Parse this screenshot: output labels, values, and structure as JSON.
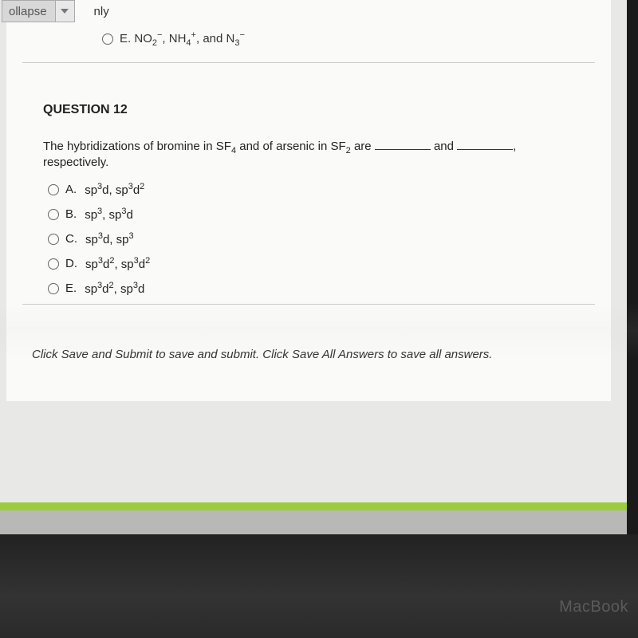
{
  "toolbar": {
    "dropdown_label": "ollapse",
    "trailing_text": "nly"
  },
  "previous_question": {
    "option_e": "E. NO₂⁻, NH₄⁺, and N₃⁻"
  },
  "question": {
    "number_label": "QUESTION 12",
    "stem_part1": "The hybridizations of bromine in SF",
    "stem_sub1": "4",
    "stem_part2": " and of arsenic in SF",
    "stem_sub2": "2",
    "stem_part3": " are ",
    "stem_and": " and ",
    "stem_end": ", respectively.",
    "options": [
      {
        "letter": "A.",
        "text": "sp³d, sp³d²"
      },
      {
        "letter": "B.",
        "text": "sp³, sp³d"
      },
      {
        "letter": "C.",
        "text": "sp³d, sp³"
      },
      {
        "letter": "D.",
        "text": "sp³d², sp³d²"
      },
      {
        "letter": "E.",
        "text": "sp³d², sp³d"
      }
    ]
  },
  "footer_instruction": "Click Save and Submit to save and submit. Click Save All Answers to save all answers.",
  "device_label": "MacBook",
  "colors": {
    "page_bg": "#e8e8e6",
    "content_bg": "#fafaf8",
    "accent_green": "#9ccc3c",
    "grey_bar": "#b8b8b6",
    "text": "#222222",
    "divider": "#cccccc"
  }
}
